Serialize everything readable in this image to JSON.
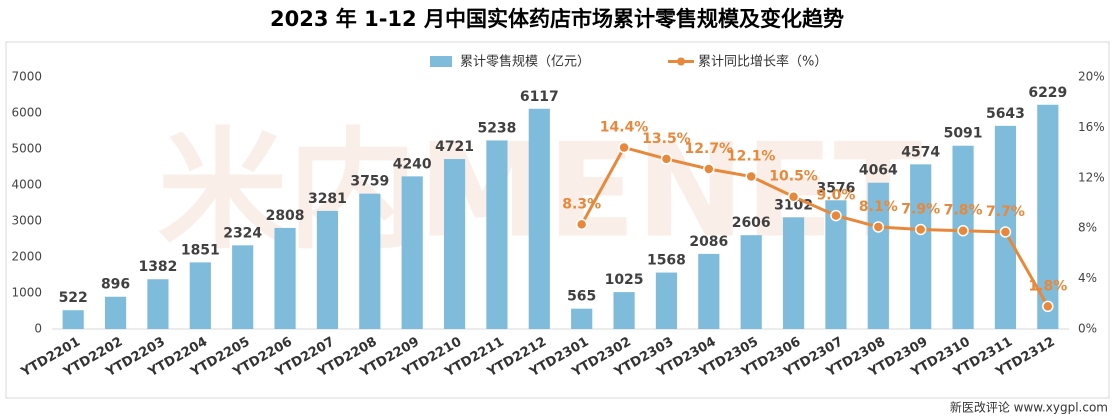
{
  "chart_data": {
    "type": "bar-line",
    "title": "2023 年 1-12 月中国实体药店市场累计零售规模及变化趋势",
    "watermark": "米内MENET",
    "footer": "新医改评论 www.xygpl.com",
    "categories": [
      "YTD2201",
      "YTD2202",
      "YTD2203",
      "YTD2204",
      "YTD2205",
      "YTD2206",
      "YTD2207",
      "YTD2208",
      "YTD2209",
      "YTD2210",
      "YTD2211",
      "YTD2212",
      "YTD2301",
      "YTD2302",
      "YTD2303",
      "YTD2304",
      "YTD2305",
      "YTD2306",
      "YTD2307",
      "YTD2308",
      "YTD2309",
      "YTD2310",
      "YTD2311",
      "YTD2312"
    ],
    "series": [
      {
        "name": "累计零售规模（亿元）",
        "color": "#7fbcdc",
        "type": "bar",
        "values": [
          522,
          896,
          1382,
          1851,
          2324,
          2808,
          3281,
          3759,
          4240,
          4721,
          5238,
          6117,
          565,
          1025,
          1568,
          2086,
          2606,
          3102,
          3576,
          4064,
          4574,
          5091,
          5643,
          6229
        ]
      },
      {
        "name": "累计同比增长率（%）",
        "color": "#e8883a",
        "type": "line",
        "axis": "y2",
        "values": [
          null,
          null,
          null,
          null,
          null,
          null,
          null,
          null,
          null,
          null,
          null,
          null,
          8.3,
          14.4,
          13.5,
          12.7,
          12.1,
          10.5,
          9.0,
          8.1,
          7.9,
          7.8,
          7.7,
          1.8
        ],
        "value_labels": [
          null,
          null,
          null,
          null,
          null,
          null,
          null,
          null,
          null,
          null,
          null,
          null,
          "8.3%",
          "14.4%",
          "13.5%",
          "12.7%",
          "12.1%",
          "10.5%",
          "9.0%",
          "8.1%",
          "7.9%",
          "7.8%",
          "7.7%",
          "1.8%"
        ]
      }
    ],
    "ylim": [
      0,
      7000
    ],
    "yticks": [
      0,
      1000,
      2000,
      3000,
      4000,
      5000,
      6000,
      7000
    ],
    "y2lim": [
      0,
      20
    ],
    "y2ticks": [
      {
        "value": 0,
        "label": "0%"
      },
      {
        "value": 4,
        "label": "4%"
      },
      {
        "value": 8,
        "label": "8%"
      },
      {
        "value": 12,
        "label": "12%"
      },
      {
        "value": 16,
        "label": "16%"
      },
      {
        "value": 20,
        "label": "20%"
      }
    ],
    "legend": "top"
  }
}
